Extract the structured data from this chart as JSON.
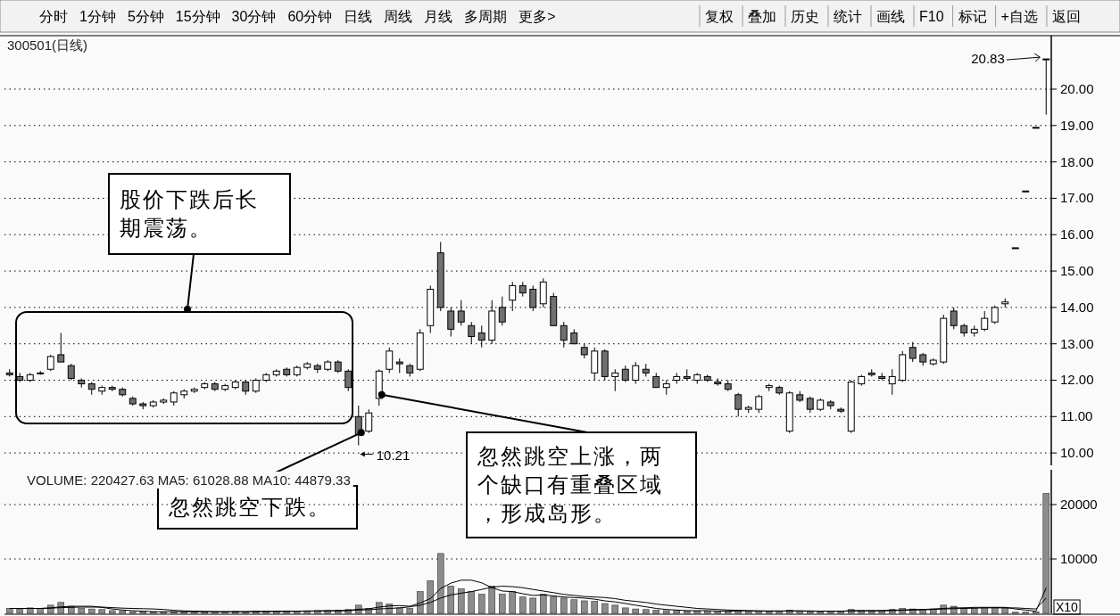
{
  "chart_data": [
    {
      "type": "other",
      "annotations": [
        "分时",
        "1分钟",
        "5分钟",
        "15分钟",
        "30分钟",
        "60分钟",
        "日线",
        "周线",
        "月线",
        "多周期",
        "更多>",
        "复权",
        "叠加",
        "历史",
        "统计",
        "画线",
        "F10",
        "标记",
        "+自选",
        "返回"
      ]
    },
    {
      "type": "candlestick",
      "title": "300501(日线)",
      "categories": [
        null,
        null,
        null,
        null,
        null,
        null,
        null,
        null,
        null,
        null,
        null,
        null,
        null,
        null,
        null,
        null,
        null,
        null,
        null,
        null,
        null,
        null,
        null,
        null,
        null,
        null,
        null,
        null,
        null,
        null,
        null,
        null,
        null,
        null,
        null,
        null,
        null,
        null,
        null,
        null,
        null,
        null,
        null,
        null,
        null,
        null,
        null,
        null,
        null,
        null,
        null,
        null,
        null,
        null,
        null,
        null,
        null,
        null,
        null,
        null,
        null,
        null,
        null,
        null,
        null,
        null,
        null,
        null,
        null,
        null,
        null,
        null,
        null,
        null,
        null,
        null,
        null,
        null,
        null,
        null,
        null,
        null,
        null,
        null,
        null,
        null,
        null,
        null,
        null,
        null,
        null,
        null,
        null,
        null,
        null,
        null,
        null,
        null,
        null,
        null,
        null,
        null
      ],
      "ohlc": [
        [
          12.2,
          12.3,
          12.1,
          12.15
        ],
        [
          12.1,
          12.2,
          11.95,
          12.0
        ],
        [
          12.0,
          12.2,
          11.95,
          12.15
        ],
        [
          12.2,
          12.25,
          12.15,
          12.2
        ],
        [
          12.3,
          12.7,
          12.25,
          12.65
        ],
        [
          12.7,
          13.3,
          12.5,
          12.5
        ],
        [
          12.4,
          12.45,
          12.0,
          12.05
        ],
        [
          12.0,
          12.05,
          11.8,
          11.9
        ],
        [
          11.9,
          11.95,
          11.6,
          11.75
        ],
        [
          11.7,
          11.85,
          11.6,
          11.8
        ],
        [
          11.8,
          11.85,
          11.7,
          11.75
        ],
        [
          11.75,
          11.8,
          11.55,
          11.6
        ],
        [
          11.5,
          11.55,
          11.3,
          11.35
        ],
        [
          11.35,
          11.4,
          11.2,
          11.3
        ],
        [
          11.3,
          11.45,
          11.25,
          11.4
        ],
        [
          11.4,
          11.5,
          11.35,
          11.45
        ],
        [
          11.4,
          11.7,
          11.3,
          11.65
        ],
        [
          11.6,
          11.75,
          11.5,
          11.7
        ],
        [
          11.7,
          11.8,
          11.65,
          11.75
        ],
        [
          11.8,
          11.95,
          11.75,
          11.9
        ],
        [
          11.9,
          11.95,
          11.7,
          11.75
        ],
        [
          11.75,
          11.9,
          11.7,
          11.85
        ],
        [
          11.8,
          12.0,
          11.75,
          11.95
        ],
        [
          11.95,
          12.0,
          11.6,
          11.7
        ],
        [
          11.7,
          12.05,
          11.65,
          12.0
        ],
        [
          12.0,
          12.2,
          11.95,
          12.15
        ],
        [
          12.15,
          12.3,
          12.1,
          12.25
        ],
        [
          12.3,
          12.35,
          12.1,
          12.15
        ],
        [
          12.15,
          12.4,
          12.1,
          12.35
        ],
        [
          12.35,
          12.5,
          12.3,
          12.45
        ],
        [
          12.4,
          12.45,
          12.2,
          12.3
        ],
        [
          12.3,
          12.55,
          12.25,
          12.5
        ],
        [
          12.5,
          12.55,
          12.2,
          12.25
        ],
        [
          12.25,
          12.3,
          11.7,
          11.8
        ],
        [
          11.0,
          11.3,
          10.21,
          10.5
        ],
        [
          10.6,
          11.2,
          10.55,
          11.1
        ],
        [
          11.5,
          12.3,
          11.3,
          12.25
        ],
        [
          12.3,
          12.9,
          12.2,
          12.8
        ],
        [
          12.5,
          12.6,
          12.2,
          12.45
        ],
        [
          12.4,
          12.45,
          12.1,
          12.2
        ],
        [
          12.3,
          13.4,
          12.25,
          13.3
        ],
        [
          13.5,
          14.6,
          13.3,
          14.5
        ],
        [
          15.5,
          15.8,
          13.9,
          14.0
        ],
        [
          13.9,
          14.0,
          13.2,
          13.4
        ],
        [
          13.9,
          14.2,
          13.5,
          13.6
        ],
        [
          13.5,
          13.6,
          13.0,
          13.2
        ],
        [
          13.3,
          13.5,
          12.9,
          13.1
        ],
        [
          13.1,
          14.2,
          13.0,
          13.9
        ],
        [
          14.0,
          14.3,
          13.5,
          13.6
        ],
        [
          14.2,
          14.7,
          13.9,
          14.6
        ],
        [
          14.6,
          14.7,
          14.3,
          14.4
        ],
        [
          14.5,
          14.6,
          13.9,
          14.0
        ],
        [
          14.1,
          14.8,
          14.0,
          14.7
        ],
        [
          14.3,
          14.4,
          13.5,
          13.5
        ],
        [
          13.5,
          13.6,
          12.9,
          13.1
        ],
        [
          13.3,
          13.4,
          13.0,
          13.0
        ],
        [
          12.9,
          13.0,
          12.6,
          12.7
        ],
        [
          12.2,
          12.9,
          12.0,
          12.8
        ],
        [
          12.8,
          12.85,
          12.0,
          12.1
        ],
        [
          12.1,
          12.3,
          11.7,
          12.2
        ],
        [
          12.3,
          12.4,
          11.95,
          12.0
        ],
        [
          12.0,
          12.5,
          11.9,
          12.4
        ],
        [
          12.3,
          12.45,
          12.1,
          12.2
        ],
        [
          12.1,
          12.2,
          11.8,
          11.8
        ],
        [
          11.8,
          12.0,
          11.6,
          11.9
        ],
        [
          12.0,
          12.2,
          11.9,
          12.1
        ],
        [
          12.1,
          12.3,
          12.0,
          12.05
        ],
        [
          12.0,
          12.2,
          11.9,
          12.15
        ],
        [
          12.1,
          12.15,
          11.95,
          12.0
        ],
        [
          11.95,
          12.05,
          11.85,
          11.9
        ],
        [
          11.9,
          12.0,
          11.7,
          11.75
        ],
        [
          11.6,
          11.65,
          11.0,
          11.2
        ],
        [
          11.2,
          11.3,
          11.1,
          11.25
        ],
        [
          11.2,
          11.6,
          11.1,
          11.55
        ],
        [
          11.8,
          11.9,
          11.7,
          11.85
        ],
        [
          11.8,
          11.85,
          11.6,
          11.65
        ],
        [
          10.6,
          11.7,
          10.55,
          11.65
        ],
        [
          11.6,
          11.7,
          11.4,
          11.45
        ],
        [
          11.5,
          11.55,
          11.1,
          11.2
        ],
        [
          11.2,
          11.5,
          11.15,
          11.45
        ],
        [
          11.4,
          11.45,
          11.2,
          11.3
        ],
        [
          11.2,
          11.25,
          11.1,
          11.15
        ],
        [
          10.6,
          12.0,
          10.55,
          11.95
        ],
        [
          11.9,
          12.15,
          11.85,
          12.1
        ],
        [
          12.2,
          12.3,
          12.1,
          12.15
        ],
        [
          12.1,
          12.2,
          12.0,
          12.05
        ],
        [
          11.9,
          12.3,
          11.6,
          12.1
        ],
        [
          12.0,
          12.8,
          11.95,
          12.7
        ],
        [
          12.9,
          13.05,
          12.5,
          12.6
        ],
        [
          12.7,
          12.75,
          12.4,
          12.5
        ],
        [
          12.45,
          12.6,
          12.4,
          12.55
        ],
        [
          12.5,
          13.8,
          12.45,
          13.7
        ],
        [
          13.9,
          14.0,
          13.4,
          13.5
        ],
        [
          13.5,
          13.55,
          13.2,
          13.3
        ],
        [
          13.3,
          13.5,
          13.2,
          13.4
        ],
        [
          13.4,
          13.9,
          13.35,
          13.7
        ],
        [
          13.6,
          14.05,
          13.55,
          14.0
        ],
        [
          14.1,
          14.25,
          14.0,
          14.15
        ],
        [
          15.64,
          15.64,
          15.64,
          15.64
        ],
        [
          17.2,
          17.2,
          17.2,
          17.2
        ],
        [
          18.95,
          18.95,
          18.95,
          18.95
        ],
        [
          20.83,
          20.83,
          19.3,
          20.83
        ]
      ],
      "ylim": [
        9.66,
        21.47
      ],
      "yticks": [
        {
          "value": 10,
          "label": "10.00"
        },
        {
          "value": 11,
          "label": "11.00"
        },
        {
          "value": 12,
          "label": "12.00"
        },
        {
          "value": 13,
          "label": "13.00"
        },
        {
          "value": 14,
          "label": "14.00"
        },
        {
          "value": 15,
          "label": "15.00"
        },
        {
          "value": 16,
          "label": "16.00"
        },
        {
          "value": 17,
          "label": "17.00"
        },
        {
          "value": 18,
          "label": "18.00"
        },
        {
          "value": 19,
          "label": "19.00"
        },
        {
          "value": 20,
          "label": "20.00"
        }
      ],
      "grid": "y",
      "annotations": [
        "10.21",
        "20.83",
        "股价下跌后长期震荡。",
        "忽然跳空下跌。",
        "忽然跳空上涨，两个缺口有重叠区域，形成岛形。"
      ]
    },
    {
      "type": "bar",
      "title": "VOLUME: 220427.63 MA5: 61028.88 MA10: 44879.33",
      "categories": [
        null,
        null,
        null,
        null,
        null,
        null,
        null,
        null,
        null,
        null,
        null,
        null,
        null,
        null,
        null,
        null,
        null,
        null,
        null,
        null,
        null,
        null,
        null,
        null,
        null,
        null,
        null,
        null,
        null,
        null,
        null,
        null,
        null,
        null,
        null,
        null,
        null,
        null,
        null,
        null,
        null,
        null,
        null,
        null,
        null,
        null,
        null,
        null,
        null,
        null,
        null,
        null,
        null,
        null,
        null,
        null,
        null,
        null,
        null,
        null,
        null,
        null,
        null,
        null,
        null,
        null,
        null,
        null,
        null,
        null,
        null,
        null,
        null,
        null,
        null,
        null,
        null,
        null,
        null,
        null,
        null,
        null,
        null,
        null,
        null,
        null,
        null,
        null,
        null,
        null,
        null,
        null,
        null,
        null,
        null,
        null,
        null,
        null,
        null,
        null,
        null,
        null
      ],
      "series": [
        {
          "type": "bar",
          "color": "#8c8c8c",
          "values": [
            900,
            800,
            1000,
            900,
            1500,
            2000,
            1300,
            900,
            800,
            700,
            500,
            400,
            300,
            300,
            300,
            250,
            300,
            300,
            350,
            300,
            300,
            300,
            350,
            300,
            400,
            400,
            400,
            450,
            400,
            450,
            500,
            500,
            600,
            700,
            1500,
            900,
            2000,
            1700,
            1000,
            900,
            4000,
            6000,
            11000,
            5000,
            4500,
            4000,
            3500,
            5000,
            3500,
            4000,
            3000,
            2800,
            3500,
            3000,
            2800,
            2500,
            2300,
            2200,
            1800,
            1500,
            1000,
            800,
            700,
            600,
            500,
            500,
            450,
            450,
            400,
            400,
            400,
            500,
            400,
            400,
            350,
            400,
            600,
            400,
            350,
            300,
            400,
            350,
            700,
            500,
            500,
            500,
            700,
            900,
            800,
            700,
            800,
            1500,
            1300,
            1000,
            900,
            1000,
            1100,
            1000,
            200,
            200,
            300,
            22043
          ]
        },
        {
          "type": "line",
          "color": "#000000",
          "values": [
            900,
            900,
            900,
            900,
            1000,
            1200,
            1300,
            1300,
            1300,
            1100,
            800,
            600,
            500,
            400,
            300,
            300,
            300,
            300,
            300,
            300,
            300,
            300,
            300,
            300,
            350,
            350,
            400,
            400,
            400,
            450,
            450,
            500,
            500,
            550,
            760,
            840,
            1140,
            1360,
            1420,
            1300,
            1920,
            2720,
            4580,
            5560,
            6100,
            6100,
            5600,
            4700,
            4100,
            4000,
            3600,
            3300,
            3400,
            3200,
            3000,
            2900,
            2800,
            2600,
            2300,
            2100,
            1800,
            1500,
            1200,
            900,
            700,
            600,
            500,
            500,
            500,
            400,
            400,
            450,
            450,
            450,
            400,
            400,
            450,
            450,
            400,
            400,
            400,
            400,
            500,
            500,
            500,
            500,
            600,
            600,
            700,
            700,
            800,
            900,
            1000,
            1000,
            1100,
            1100,
            1100,
            1100,
            800,
            600,
            400,
            4700
          ]
        },
        {
          "type": "line",
          "color": "#000000",
          "values": [
            900,
            900,
            900,
            900,
            950,
            1050,
            1100,
            1150,
            1150,
            1150,
            1050,
            950,
            900,
            850,
            800,
            700,
            550,
            450,
            400,
            350,
            300,
            300,
            300,
            300,
            330,
            330,
            350,
            350,
            370,
            400,
            420,
            450,
            450,
            480,
            600,
            650,
            800,
            900,
            1000,
            1200,
            1500,
            2000,
            2800,
            3400,
            3700,
            4000,
            4400,
            4800,
            5000,
            4900,
            4700,
            4400,
            4100,
            3800,
            3500,
            3300,
            3100,
            3000,
            2900,
            2700,
            2400,
            2200,
            2000,
            1700,
            1500,
            1300,
            1100,
            900,
            800,
            700,
            600,
            550,
            500,
            450,
            450,
            450,
            450,
            450,
            450,
            400,
            400,
            400,
            430,
            450,
            450,
            460,
            500,
            550,
            600,
            650,
            700,
            800,
            850,
            900,
            950,
            1000,
            1000,
            1000,
            1000,
            900,
            800,
            2800
          ]
        }
      ],
      "ylim": [
        0,
        26400
      ],
      "yticks": [
        10000,
        20000
      ],
      "grid": "y",
      "annotations": [
        "X10"
      ]
    }
  ]
}
